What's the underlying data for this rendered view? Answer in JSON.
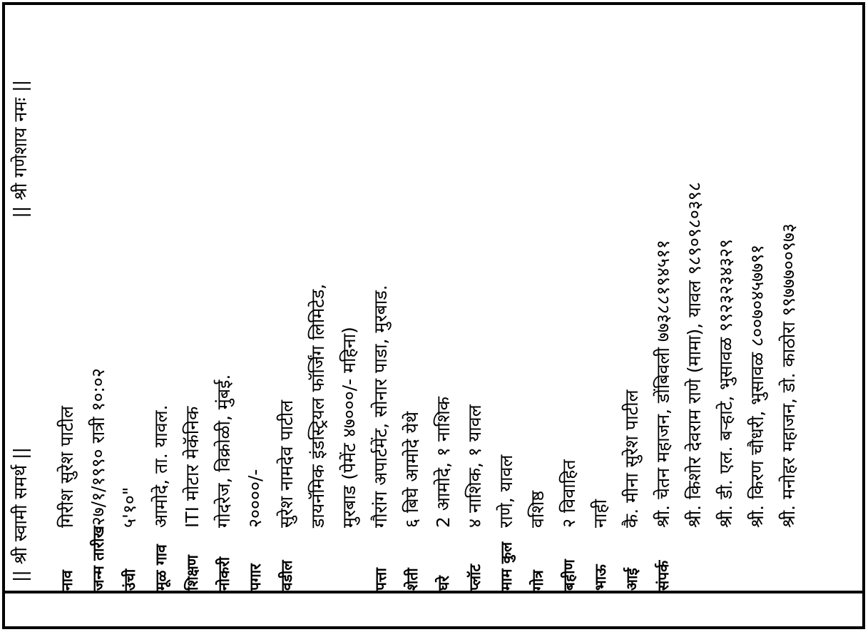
{
  "document": {
    "type": "marathi-biodata-page",
    "header": {
      "left": "|| श्री स्वामी समर्थ ||",
      "right": "|| श्री गणेशाय नमः ||"
    },
    "fields": [
      {
        "label": "नाव",
        "lines": [
          "गिरीश सुरेश पाटील"
        ]
      },
      {
        "label": "जन्म तारीख",
        "lines": [
          "२७/१/१९९० रात्री १०:०२"
        ]
      },
      {
        "label": "उंची",
        "lines": [
          "५'१०\""
        ]
      },
      {
        "label": "मूळ गाव",
        "lines": [
          "आमोदे, ता. यावल."
        ]
      },
      {
        "label": "शिक्षण",
        "lines": [
          "ITI मोटार मेकॅनिक"
        ]
      },
      {
        "label": "नोकरी",
        "lines": [
          "गोदरेज, विक्रोळी, मुंबई."
        ]
      },
      {
        "label": "पगार",
        "lines": [
          "२००००/-"
        ]
      },
      {
        "label": "वडील",
        "lines": [
          "सुरेश नामदेव पाटील",
          "डायनॅमिक इंडस्ट्रियल फॉर्जिंग लिमिटेड,",
          "मुरबाड (पेमेंट ४७०००/- महिना)"
        ]
      },
      {
        "label": "पत्ता",
        "lines": [
          "गौरांग अपार्टमेंट, सोनार पाडा, मुरबाड."
        ]
      },
      {
        "label": "शेती",
        "lines": [
          "६ बिघे आमोदे येथे"
        ]
      },
      {
        "label": "घरे",
        "lines": [
          "2 आमोदे, १ नाशिक"
        ]
      },
      {
        "label": "प्लॉट",
        "lines": [
          "४ नाशिक, १ यावल"
        ]
      },
      {
        "label": "माम कुल",
        "lines": [
          "राणे, यावल"
        ]
      },
      {
        "label": "गोत्र",
        "lines": [
          "वशिष्ठ"
        ]
      },
      {
        "label": "बहीण",
        "lines": [
          "२ विवाहित"
        ]
      },
      {
        "label": "भाऊ",
        "lines": [
          "नाही"
        ]
      },
      {
        "label": "आई",
        "lines": [
          "कै. मीना सुरेश पाटील"
        ]
      },
      {
        "label": "संपर्क",
        "lines": [
          "श्री. चेतन महाजन, डोंबिवली ७७३८८१९४५११",
          "श्री. किशोर देवराम राणे (मामा), यावल ९८९०९८०३९८",
          "श्री. डी. एल. बऱ्हाटे, भुसावळ ९९२३२३४३२९",
          "श्री. किरण चौधरी, भुसावळ ८००७०४५७७९१",
          "श्री. मनोहर महाजन, डो. काठोरा ९९७७७००९७३"
        ]
      }
    ],
    "colors": {
      "ink": "#000000",
      "paper": "#ffffff"
    },
    "orientation": "rotated-90-ccw"
  }
}
